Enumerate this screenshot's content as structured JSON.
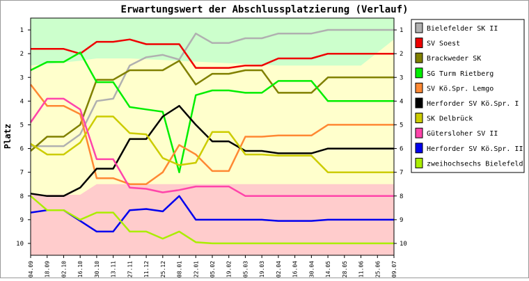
{
  "chart_data": {
    "type": "line",
    "title": "Erwartungswert der Abschlussplatzierung (Verlauf)",
    "ylabel": "Platz",
    "xlabel": "",
    "ylim": [
      10.5,
      0.5
    ],
    "y_ticks": [
      1,
      2,
      3,
      4,
      5,
      6,
      7,
      8,
      9,
      10
    ],
    "legend_position": "right",
    "grid": false,
    "x_ticks": [
      "04.09",
      "18.09",
      "02.10",
      "16.10",
      "30.10",
      "13.11",
      "27.11",
      "11.12",
      "25.12",
      "08.01",
      "22.01",
      "05.02",
      "19.02",
      "05.03",
      "19.03",
      "02.04",
      "16.04",
      "30.04",
      "14.05",
      "28.05",
      "11.06",
      "25.06",
      "09.07"
    ],
    "background_bands": [
      {
        "color": "#ccffcc",
        "description": "green zone top"
      },
      {
        "color": "#ffffcc",
        "description": "yellow middle zone"
      },
      {
        "color": "#ffcccc",
        "description": "red zone bottom"
      }
    ],
    "series": [
      {
        "name": "Bielefelder SK II",
        "color": "#b0b0b0",
        "values": [
          5.9,
          5.9,
          5.9,
          5.4,
          4.0,
          3.9,
          2.5,
          2.15,
          2.05,
          2.25,
          1.15,
          1.55,
          1.55,
          1.35,
          1.35,
          1.15,
          1.15,
          1.15,
          1.0,
          1.0,
          1.0,
          1.0,
          1.0
        ]
      },
      {
        "name": "SV Soest",
        "color": "#ee0000",
        "values": [
          1.8,
          1.8,
          1.8,
          2.0,
          1.5,
          1.5,
          1.4,
          1.6,
          1.6,
          1.6,
          2.6,
          2.6,
          2.6,
          2.5,
          2.5,
          2.2,
          2.2,
          2.2,
          2.0,
          2.0,
          2.0,
          2.0,
          2.0
        ]
      },
      {
        "name": "Brackweder SK",
        "color": "#808000",
        "values": [
          6.1,
          5.5,
          5.5,
          5.0,
          3.1,
          3.1,
          2.7,
          2.7,
          2.7,
          2.3,
          3.3,
          2.85,
          2.85,
          2.7,
          2.7,
          3.65,
          3.65,
          3.65,
          3.0,
          3.0,
          3.0,
          3.0,
          3.0
        ]
      },
      {
        "name": "SG Turm Rietberg",
        "color": "#00ee00",
        "values": [
          2.7,
          2.35,
          2.35,
          1.95,
          3.2,
          3.2,
          4.25,
          4.35,
          4.45,
          7.0,
          3.75,
          3.55,
          3.55,
          3.65,
          3.65,
          3.15,
          3.15,
          3.15,
          4.0,
          4.0,
          4.0,
          4.0,
          4.0
        ]
      },
      {
        "name": "SV Kö.Spr. Lemgo",
        "color": "#ff8833",
        "values": [
          3.3,
          4.2,
          4.2,
          4.55,
          7.25,
          7.25,
          7.5,
          7.5,
          7.0,
          5.85,
          6.25,
          6.95,
          6.95,
          5.5,
          5.5,
          5.45,
          5.45,
          5.45,
          5.0,
          5.0,
          5.0,
          5.0,
          5.0
        ]
      },
      {
        "name": "Herforder SV Kö.Spr. I",
        "color": "#000000",
        "values": [
          7.9,
          8.0,
          8.0,
          7.65,
          6.85,
          6.85,
          5.6,
          5.6,
          4.65,
          4.2,
          5.0,
          5.7,
          5.7,
          6.1,
          6.1,
          6.2,
          6.2,
          6.2,
          6.0,
          6.0,
          6.0,
          6.0,
          6.0
        ]
      },
      {
        "name": "SK Delbrück",
        "color": "#cccc00",
        "values": [
          5.8,
          6.25,
          6.25,
          5.75,
          4.65,
          4.65,
          5.35,
          5.4,
          6.4,
          6.7,
          6.6,
          5.3,
          5.3,
          6.25,
          6.25,
          6.3,
          6.3,
          6.3,
          7.0,
          7.0,
          7.0,
          7.0,
          7.0
        ]
      },
      {
        "name": "Gütersloher SV II",
        "color": "#ff44aa",
        "values": [
          4.9,
          3.9,
          3.9,
          4.35,
          6.45,
          6.45,
          7.65,
          7.7,
          7.85,
          7.75,
          7.6,
          7.6,
          7.6,
          8.0,
          8.0,
          8.0,
          8.0,
          8.0,
          8.0,
          8.0,
          8.0,
          8.0,
          8.0
        ]
      },
      {
        "name": "Herforder SV Kö.Spr. II",
        "color": "#0000ee",
        "values": [
          8.7,
          8.6,
          8.6,
          9.05,
          9.5,
          9.5,
          8.6,
          8.55,
          8.65,
          8.0,
          9.0,
          9.0,
          9.0,
          9.0,
          9.0,
          9.05,
          9.05,
          9.05,
          9.0,
          9.0,
          9.0,
          9.0,
          9.0
        ]
      },
      {
        "name": "zweihochsechs Bielefeld",
        "color": "#aaee00",
        "values": [
          8.0,
          8.6,
          8.6,
          9.0,
          8.7,
          8.7,
          9.5,
          9.5,
          9.8,
          9.5,
          9.95,
          10.0,
          10.0,
          10.0,
          10.0,
          10.0,
          10.0,
          10.0,
          10.0,
          10.0,
          10.0,
          10.0,
          10.0
        ]
      }
    ]
  }
}
